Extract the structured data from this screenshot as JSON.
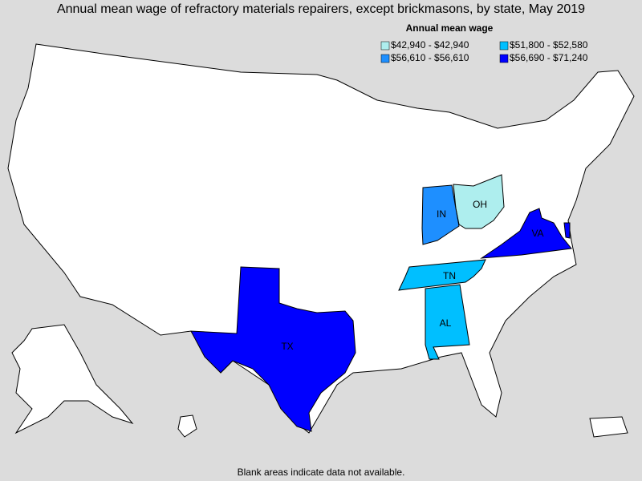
{
  "chart_data": {
    "type": "choropleth",
    "title": "Annual mean wage of refractory materials repairers, except brickmasons, by state, May 2019",
    "legend_title": "Annual mean wage",
    "legend": [
      {
        "label": "$42,940 - $42,940",
        "color": "#aeeeee"
      },
      {
        "label": "$51,800 - $52,580",
        "color": "#00bfff"
      },
      {
        "label": "$56,610 - $56,610",
        "color": "#1e8fff"
      },
      {
        "label": "$56,690 - $71,240",
        "color": "#0000ff"
      }
    ],
    "states": [
      {
        "label": "OH",
        "color": "#aeeeee"
      },
      {
        "label": "IN",
        "color": "#1e8fff"
      },
      {
        "label": "VA",
        "color": "#0000ff"
      },
      {
        "label": "TN",
        "color": "#00bfff"
      },
      {
        "label": "AL",
        "color": "#00bfff"
      },
      {
        "label": "TX",
        "color": "#0000ff"
      },
      {
        "label": null,
        "color": "#0000ff"
      }
    ],
    "footnote": "Blank areas indicate data not available."
  }
}
